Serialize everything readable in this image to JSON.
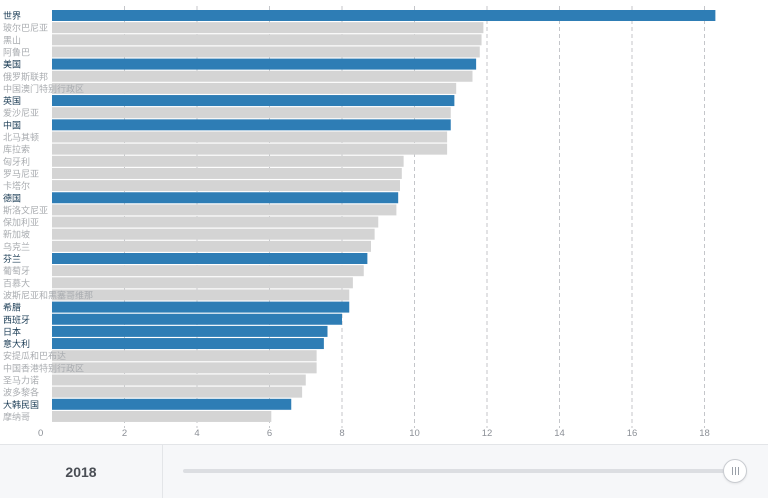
{
  "chart_data": {
    "type": "bar",
    "orientation": "horizontal",
    "xlim": [
      0,
      19
    ],
    "x_ticks": [
      0,
      2,
      4,
      6,
      8,
      10,
      12,
      14,
      16,
      18
    ],
    "grid": "vertical dashed",
    "colors": {
      "highlight": "#2e7db5",
      "default": "#d4d4d4",
      "highlight_label": "#1b3c55",
      "default_label": "#a9acb0"
    },
    "bars": [
      {
        "label": "世界",
        "value": 18.3,
        "highlight": true
      },
      {
        "label": "玻尔巴尼亚",
        "value": 11.9,
        "highlight": false
      },
      {
        "label": "黑山",
        "value": 11.85,
        "highlight": false
      },
      {
        "label": "阿鲁巴",
        "value": 11.8,
        "highlight": false
      },
      {
        "label": "美国",
        "value": 11.7,
        "highlight": true
      },
      {
        "label": "俄罗斯联邦",
        "value": 11.6,
        "highlight": false
      },
      {
        "label": "中国澳门特别行政区",
        "value": 11.15,
        "highlight": false
      },
      {
        "label": "英国",
        "value": 11.1,
        "highlight": true
      },
      {
        "label": "爱沙尼亚",
        "value": 11.0,
        "highlight": false
      },
      {
        "label": "中国",
        "value": 11.0,
        "highlight": true
      },
      {
        "label": "北马其顿",
        "value": 10.9,
        "highlight": false
      },
      {
        "label": "库拉索",
        "value": 10.9,
        "highlight": false
      },
      {
        "label": "匈牙利",
        "value": 9.7,
        "highlight": false
      },
      {
        "label": "罗马尼亚",
        "value": 9.65,
        "highlight": false
      },
      {
        "label": "卡塔尔",
        "value": 9.6,
        "highlight": false
      },
      {
        "label": "德国",
        "value": 9.55,
        "highlight": true
      },
      {
        "label": "斯洛文尼亚",
        "value": 9.5,
        "highlight": false
      },
      {
        "label": "保加利亚",
        "value": 9.0,
        "highlight": false
      },
      {
        "label": "新加坡",
        "value": 8.9,
        "highlight": false
      },
      {
        "label": "乌克兰",
        "value": 8.8,
        "highlight": false
      },
      {
        "label": "芬兰",
        "value": 8.7,
        "highlight": true
      },
      {
        "label": "葡萄牙",
        "value": 8.6,
        "highlight": false
      },
      {
        "label": "百慕大",
        "value": 8.3,
        "highlight": false
      },
      {
        "label": "波斯尼亚和黑塞哥维那",
        "value": 8.2,
        "highlight": false
      },
      {
        "label": "希腊",
        "value": 8.2,
        "highlight": true
      },
      {
        "label": "西班牙",
        "value": 8.0,
        "highlight": true
      },
      {
        "label": "日本",
        "value": 7.6,
        "highlight": true
      },
      {
        "label": "意大利",
        "value": 7.5,
        "highlight": true
      },
      {
        "label": "安提瓜和巴布达",
        "value": 7.3,
        "highlight": false
      },
      {
        "label": "中国香港特别行政区",
        "value": 7.3,
        "highlight": false
      },
      {
        "label": "圣马力诺",
        "value": 7.0,
        "highlight": false
      },
      {
        "label": "波多黎各",
        "value": 6.9,
        "highlight": false
      },
      {
        "label": "大韩民国",
        "value": 6.6,
        "highlight": true
      },
      {
        "label": "摩纳哥",
        "value": 6.05,
        "highlight": false
      }
    ]
  },
  "footer": {
    "year": "2018",
    "slider": {
      "value_fraction": 1.0
    }
  }
}
